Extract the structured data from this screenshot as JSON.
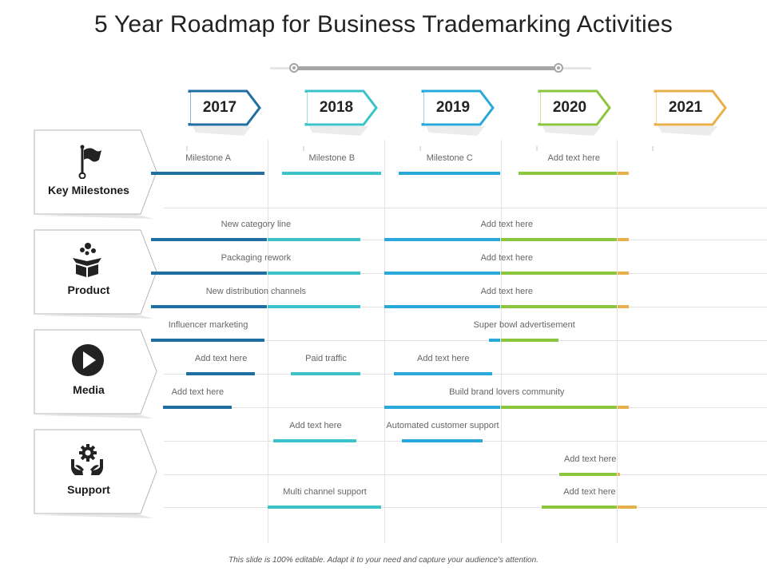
{
  "title": "5 Year Roadmap for Business Trademarking Activities",
  "footer": "This slide is 100% editable. Adapt it to your need and capture your audience's attention.",
  "years": [
    {
      "label": "2017",
      "color": "#1f6fa3"
    },
    {
      "label": "2018",
      "color": "#3cc3c9"
    },
    {
      "label": "2019",
      "color": "#29a8db"
    },
    {
      "label": "2020",
      "color": "#8cc63f"
    },
    {
      "label": "2021",
      "color": "#e8b04a"
    }
  ],
  "categories": [
    {
      "label": "Key Milestones",
      "icon": "flag-icon"
    },
    {
      "label": "Product",
      "icon": "box-icon"
    },
    {
      "label": "Media",
      "icon": "play-icon"
    },
    {
      "label": "Support",
      "icon": "gear-hands-icon"
    }
  ],
  "rows": [
    {
      "bars": [
        {
          "label": "Milestone A",
          "start": 2017.0,
          "end": 2017.98
        },
        {
          "label": "Milestone B",
          "start": 2018.12,
          "end": 2018.98
        },
        {
          "label": "Milestone C",
          "start": 2019.12,
          "end": 2020.0
        },
        {
          "label": "Add text here",
          "start": 2020.15,
          "end": 2021.1
        }
      ]
    },
    {
      "bars": [
        {
          "label": "New category line",
          "start": 2017.0,
          "end": 2018.8
        },
        {
          "label": "Add text here",
          "start": 2019.0,
          "end": 2021.1
        }
      ]
    },
    {
      "bars": [
        {
          "label": "Packaging rework",
          "start": 2017.0,
          "end": 2018.8
        },
        {
          "label": "Add text here",
          "start": 2019.0,
          "end": 2021.1
        }
      ]
    },
    {
      "bars": [
        {
          "label": "New distribution  channels",
          "start": 2017.0,
          "end": 2018.8
        },
        {
          "label": "Add text here",
          "start": 2019.0,
          "end": 2021.1
        }
      ]
    },
    {
      "bars": [
        {
          "label": "Influencer marketing",
          "start": 2017.0,
          "end": 2017.98
        },
        {
          "label": "Super bowl advertisement",
          "start": 2019.9,
          "end": 2020.5
        }
      ]
    },
    {
      "bars": [
        {
          "label": "Add text here",
          "start": 2017.3,
          "end": 2017.9
        },
        {
          "label": "Paid traffic",
          "start": 2018.2,
          "end": 2018.8
        },
        {
          "label": "Add text here",
          "start": 2019.08,
          "end": 2019.93
        }
      ]
    },
    {
      "bars": [
        {
          "label": "Add text here",
          "start": 2017.1,
          "end": 2017.7
        },
        {
          "label": "Build brand lovers community",
          "start": 2019.0,
          "end": 2021.1
        }
      ]
    },
    {
      "bars": [
        {
          "label": "Add text here",
          "start": 2018.05,
          "end": 2018.77
        },
        {
          "label": "Automated customer support",
          "start": 2019.15,
          "end": 2019.85
        }
      ]
    },
    {
      "bars": [
        {
          "label": "Add text here",
          "start": 2020.5,
          "end": 2021.03
        }
      ]
    },
    {
      "bars": [
        {
          "label": "Multi channel support",
          "start": 2018.0,
          "end": 2018.98
        },
        {
          "label": "Add text here",
          "start": 2020.35,
          "end": 2021.17
        }
      ]
    }
  ]
}
